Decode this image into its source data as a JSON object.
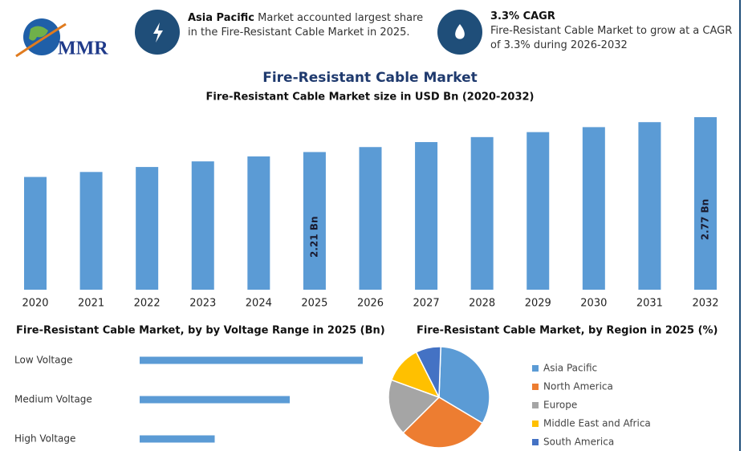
{
  "header": {
    "logo": "MMR",
    "left_bold": "Asia Pacific",
    "left_text": "Market accounted largest share in the Fire-Resistant Cable Market in 2025.",
    "right_bold": "3.3% CAGR",
    "right_text": "Fire-Resistant Cable Market to grow at a CAGR of 3.3% during 2026-2032"
  },
  "chart_data": [
    {
      "type": "bar",
      "title": "Fire-Resistant Cable Market",
      "subtitle": "Fire-Resistant Cable Market size in USD Bn (2020-2032)",
      "categories": [
        "2020",
        "2021",
        "2022",
        "2023",
        "2024",
        "2025",
        "2026",
        "2027",
        "2028",
        "2029",
        "2030",
        "2031",
        "2032"
      ],
      "values": [
        1.81,
        1.89,
        1.97,
        2.06,
        2.14,
        2.21,
        2.29,
        2.37,
        2.45,
        2.53,
        2.61,
        2.69,
        2.77
      ],
      "value_labels": [
        null,
        null,
        null,
        null,
        null,
        "2.21 Bn",
        null,
        null,
        null,
        null,
        null,
        null,
        "2.77 Bn"
      ],
      "color": "#5b9bd5"
    },
    {
      "type": "barh",
      "title": "Fire-Resistant Cable Market, by by Voltage Range in 2025 (Bn)",
      "categories": [
        "Low Voltage",
        "Medium Voltage",
        "High Voltage"
      ],
      "values": [
        1.1,
        0.74,
        0.37
      ],
      "color": "#5b9bd5"
    },
    {
      "type": "pie",
      "title": "Fire-Resistant Cable Market, by Region in 2025 (%)",
      "categories": [
        "Asia Pacific",
        "North America",
        "Europe",
        "Middle East and Africa",
        "South America"
      ],
      "values": [
        33,
        29,
        18,
        12,
        8
      ],
      "colors": [
        "#5b9bd5",
        "#ed7d31",
        "#a5a5a5",
        "#ffc000",
        "#4472c4"
      ]
    }
  ]
}
